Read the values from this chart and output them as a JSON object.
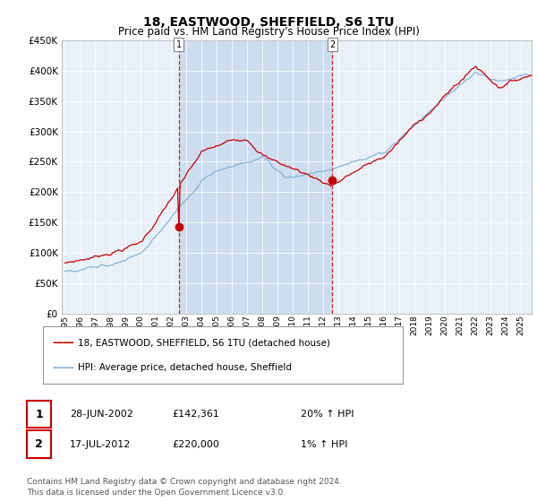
{
  "title": "18, EASTWOOD, SHEFFIELD, S6 1TU",
  "subtitle": "Price paid vs. HM Land Registry's House Price Index (HPI)",
  "legend_line1": "18, EASTWOOD, SHEFFIELD, S6 1TU (detached house)",
  "legend_line2": "HPI: Average price, detached house, Sheffield",
  "annotation1_date": "28-JUN-2002",
  "annotation1_price": "£142,361",
  "annotation1_hpi": "20% ↑ HPI",
  "annotation2_date": "17-JUL-2012",
  "annotation2_price": "£220,000",
  "annotation2_hpi": "1% ↑ HPI",
  "footnote": "Contains HM Land Registry data © Crown copyright and database right 2024.\nThis data is licensed under the Open Government Licence v3.0.",
  "ylim": [
    0,
    450000
  ],
  "hpi_color": "#7bafd4",
  "price_color": "#cc0000",
  "marker_color": "#cc0000",
  "dashed_color": "#cc0000",
  "background_plot": "#e8f0f8",
  "background_highlight": "#ccddf0",
  "grid_color": "#d0d8e8"
}
